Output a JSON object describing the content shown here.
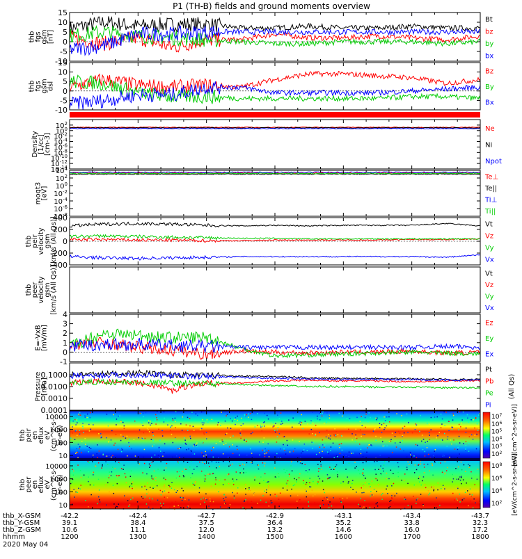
{
  "title": "P1 (TH-B) fields and ground moments overview",
  "footer": {
    "rows": [
      {
        "label": "thb_X-GSM",
        "values": [
          "-42.2",
          "-42.4",
          "-42.7",
          "-42.9",
          "-43.1",
          "-43.4",
          "-43.7"
        ]
      },
      {
        "label": "thb_Y-GSM",
        "values": [
          "39.1",
          "38.4",
          "37.5",
          "36.4",
          "35.2",
          "33.8",
          "32.3"
        ]
      },
      {
        "label": "thb_Z-GSM",
        "values": [
          "10.6",
          "11.1",
          "12.0",
          "13.2",
          "14.6",
          "16.0",
          "17.2"
        ]
      },
      {
        "label": "hhmm",
        "values": [
          "1200",
          "1300",
          "1400",
          "1500",
          "1600",
          "1700",
          "1800"
        ]
      }
    ],
    "date": "2020 May 04"
  },
  "colorbar_labels": {
    "top": "[eV/(cm^2-s-sr-eV)]",
    "bottom": "[eV/(cm^2-s-sr-eV)]"
  },
  "chart_data": [
    {
      "type": "line",
      "panel": "fgs_gsm",
      "ylabel": [
        "thb",
        "fgs",
        "gsm",
        "[nT]"
      ],
      "ylim": [
        -10,
        15
      ],
      "yticks": [
        "15",
        "10",
        "5",
        "0",
        "-5",
        "-10"
      ],
      "legend": [
        {
          "name": "Bt",
          "color": "#000000"
        },
        {
          "name": "bz",
          "color": "#ff0000"
        },
        {
          "name": "by",
          "color": "#00cc00"
        },
        {
          "name": "bx",
          "color": "#0000ff"
        }
      ],
      "x_hours": [
        12.0,
        12.5,
        13.0,
        13.5,
        14.0,
        14.5,
        15.0,
        15.5,
        16.0,
        16.5,
        17.0,
        17.5,
        18.0
      ],
      "series": [
        {
          "name": "Bt",
          "color": "#000000",
          "values": [
            7,
            10,
            8,
            9,
            9,
            7,
            7,
            8,
            7,
            7,
            8,
            7,
            7
          ]
        },
        {
          "name": "bz",
          "color": "#ff0000",
          "values": [
            2,
            -1,
            2,
            -3,
            1,
            1,
            4,
            2,
            2,
            3,
            2,
            1,
            3
          ]
        },
        {
          "name": "by",
          "color": "#00cc00",
          "values": [
            3,
            5,
            3,
            2,
            1,
            0,
            -1,
            -1,
            0,
            0,
            0,
            -1,
            0
          ]
        },
        {
          "name": "bx",
          "color": "#0000ff",
          "values": [
            -4,
            -2,
            4,
            4,
            5,
            5,
            5,
            5,
            5,
            5,
            5,
            5,
            5
          ]
        }
      ]
    },
    {
      "type": "line",
      "panel": "fgs_dsl",
      "ylabel": [
        "thb",
        "fgs",
        "gsm",
        "dsl"
      ],
      "ylim": [
        -10,
        15
      ],
      "yticks": [
        "15",
        "10",
        "5",
        "0",
        "-5",
        "-10"
      ],
      "legend": [
        {
          "name": "Bz",
          "color": "#ff0000"
        },
        {
          "name": "By",
          "color": "#00cc00"
        },
        {
          "name": "Bx",
          "color": "#0000ff"
        }
      ],
      "x_hours": [
        12.0,
        12.5,
        13.0,
        13.5,
        14.0,
        14.5,
        15.0,
        15.5,
        16.0,
        16.5,
        17.0,
        17.5,
        18.0
      ],
      "series": [
        {
          "name": "Bz",
          "color": "#ff0000",
          "values": [
            2,
            6,
            3,
            2,
            3,
            2,
            6,
            9,
            9,
            8,
            7,
            4,
            6
          ]
        },
        {
          "name": "By",
          "color": "#00cc00",
          "values": [
            5,
            4,
            -1,
            -3,
            -3,
            -4,
            -4,
            -4,
            -4,
            -4,
            -3,
            -3,
            -4
          ]
        },
        {
          "name": "Bx",
          "color": "#0000ff",
          "values": [
            -7,
            -5,
            -2,
            -2,
            2,
            2,
            -1,
            -1,
            -1,
            -1,
            0,
            1,
            2
          ]
        }
      ]
    },
    {
      "type": "line",
      "panel": "density",
      "log": true,
      "ylabel": [
        "Density",
        "[1/cc]",
        "[cm-3]"
      ],
      "ylim_log": [
        -14,
        4
      ],
      "yticks": [
        "10^2",
        "10^0",
        "10^-2",
        "10^-4",
        "10^-6",
        "10^-8",
        "10^-10",
        "10^-12",
        "10^-14"
      ],
      "legend": [
        {
          "name": "Ne",
          "color": "#ff0000"
        },
        {
          "name": "Ni",
          "color": "#000000"
        },
        {
          "name": "Npot",
          "color": "#0000ff"
        }
      ],
      "series": [
        {
          "name": "Ne",
          "color": "#ff0000",
          "log_level": 1.2
        },
        {
          "name": "Ni",
          "color": "#000000",
          "log_level": 1.0
        },
        {
          "name": "Npot",
          "color": "#0000ff",
          "log_level": 0.7
        }
      ]
    },
    {
      "type": "line",
      "panel": "temperature",
      "log": true,
      "ylabel": [
        "moqt3",
        "[eV]"
      ],
      "ylim_log": [
        -8,
        4
      ],
      "yticks": [
        "10^4",
        "10^2",
        "10^0",
        "10^-2",
        "10^-4",
        "10^-6",
        "10^-8"
      ],
      "legend": [
        {
          "name": "Te⊥",
          "color": "#ff0000"
        },
        {
          "name": "Te||",
          "color": "#000000"
        },
        {
          "name": "Ti⊥",
          "color": "#0000ff"
        },
        {
          "name": "Ti||",
          "color": "#00cc00"
        }
      ],
      "series": [
        {
          "name": "Te⊥",
          "color": "#ff0000",
          "log_level": 3.3
        },
        {
          "name": "Te||",
          "color": "#000000",
          "log_level": 3.0
        },
        {
          "name": "Ti⊥",
          "color": "#0000ff",
          "log_level": 3.5
        },
        {
          "name": "Ti||",
          "color": "#00cc00",
          "log_level": 3.2
        }
      ]
    },
    {
      "type": "line",
      "panel": "peir_velocity",
      "ylabel": [
        "thb",
        "peir",
        "velocity",
        "gsm",
        "[km/s (All Qs)]"
      ],
      "ylim": [
        -400,
        400
      ],
      "yticks": [
        "400",
        "200",
        "0",
        "-200",
        "-400"
      ],
      "legend": [
        {
          "name": "Vt",
          "color": "#000000"
        },
        {
          "name": "Vz",
          "color": "#ff0000"
        },
        {
          "name": "Vy",
          "color": "#00cc00"
        },
        {
          "name": "Vx",
          "color": "#0000ff"
        }
      ],
      "x_hours": [
        12.0,
        12.5,
        13.0,
        13.5,
        14.0,
        14.5,
        15.0,
        15.5,
        16.0,
        16.5,
        17.0,
        17.5,
        18.0
      ],
      "series": [
        {
          "name": "Vt",
          "color": "#000000",
          "values": [
            260,
            290,
            300,
            290,
            270,
            260,
            270,
            260,
            270,
            270,
            270,
            300,
            260
          ]
        },
        {
          "name": "Vz",
          "color": "#ff0000",
          "values": [
            30,
            30,
            20,
            20,
            10,
            10,
            20,
            20,
            20,
            20,
            30,
            30,
            40
          ]
        },
        {
          "name": "Vy",
          "color": "#00cc00",
          "values": [
            80,
            90,
            80,
            70,
            60,
            50,
            50,
            40,
            40,
            40,
            40,
            40,
            40
          ]
        },
        {
          "name": "Vx",
          "color": "#0000ff",
          "values": [
            -260,
            -280,
            -290,
            -280,
            -270,
            -260,
            -260,
            -260,
            -260,
            -260,
            -260,
            -270,
            -230
          ]
        }
      ]
    },
    {
      "type": "line",
      "panel": "peer_velocity",
      "ylabel": [
        "thb",
        "peer",
        "velocity",
        "gsm",
        "[km/s (All Qs)]"
      ],
      "legend": [
        {
          "name": "Vt",
          "color": "#000000"
        },
        {
          "name": "Vz",
          "color": "#ff0000"
        },
        {
          "name": "Vy",
          "color": "#00cc00"
        },
        {
          "name": "Vx",
          "color": "#0000ff"
        }
      ],
      "series": []
    },
    {
      "type": "line",
      "panel": "efield",
      "ylabel": [
        "E=-VxB",
        "[mV/m]"
      ],
      "ylim": [
        -1,
        4
      ],
      "yticks": [
        "4",
        "3",
        "2",
        "1",
        "0",
        "-1"
      ],
      "legend": [
        {
          "name": "Ez",
          "color": "#ff0000"
        },
        {
          "name": "Ey",
          "color": "#00cc00"
        },
        {
          "name": "Ex",
          "color": "#0000ff"
        }
      ],
      "x_hours": [
        12.0,
        12.5,
        13.0,
        13.5,
        14.0,
        14.5,
        15.0,
        15.5,
        16.0,
        16.5,
        17.0,
        17.5,
        18.0
      ],
      "series": [
        {
          "name": "Ez",
          "color": "#ff0000",
          "values": [
            0.8,
            1.0,
            0.5,
            0.2,
            -0.2,
            0.1,
            0.0,
            -0.1,
            0.0,
            0.0,
            0.1,
            -0.1,
            0.0
          ]
        },
        {
          "name": "Ey",
          "color": "#00cc00",
          "values": [
            0.6,
            2.0,
            1.8,
            1.5,
            1.6,
            0.4,
            -0.4,
            -0.3,
            -0.2,
            -0.1,
            0.0,
            -0.1,
            -0.2
          ]
        },
        {
          "name": "Ex",
          "color": "#0000ff",
          "values": [
            0.6,
            0.8,
            0.8,
            0.7,
            0.6,
            0.5,
            0.5,
            0.5,
            0.5,
            0.5,
            0.5,
            0.6,
            0.5
          ]
        }
      ]
    },
    {
      "type": "line",
      "panel": "pressure",
      "log": true,
      "ylabel": [
        "Pressure",
        "[nPa]"
      ],
      "ylim_log": [
        -4,
        0
      ],
      "yticks": [
        "0.1000",
        "0.0100",
        "0.0010",
        "0.0001"
      ],
      "legend": [
        {
          "name": "Pt",
          "color": "#000000"
        },
        {
          "name": "Pb",
          "color": "#ff0000"
        },
        {
          "name": "Pe",
          "color": "#00cc00"
        },
        {
          "name": "Pi",
          "color": "#0000ff"
        }
      ],
      "right_label": "(All Qs)",
      "x_hours": [
        12.0,
        12.5,
        13.0,
        13.5,
        14.0,
        14.5,
        15.0,
        15.5,
        16.0,
        16.5,
        17.0,
        17.5,
        18.0
      ],
      "series": [
        {
          "name": "Pt",
          "color": "#000000",
          "values": [
            0.1,
            0.12,
            0.14,
            0.1,
            0.09,
            0.08,
            0.07,
            0.055,
            0.05,
            0.05,
            0.045,
            0.04,
            0.04
          ]
        },
        {
          "name": "Pb",
          "color": "#ff0000",
          "values": [
            0.02,
            0.03,
            0.02,
            0.004,
            0.02,
            0.02,
            0.03,
            0.035,
            0.03,
            0.03,
            0.025,
            0.03,
            0.03
          ]
        },
        {
          "name": "Pe",
          "color": "#00cc00",
          "values": [
            0.02,
            0.025,
            0.022,
            0.02,
            0.018,
            0.015,
            0.012,
            0.01,
            0.01,
            0.009,
            0.009,
            0.008,
            0.008
          ]
        },
        {
          "name": "Pi",
          "color": "#0000ff",
          "values": [
            0.08,
            0.09,
            0.1,
            0.08,
            0.07,
            0.06,
            0.05,
            0.045,
            0.04,
            0.04,
            0.04,
            0.035,
            0.035
          ]
        }
      ]
    },
    {
      "type": "heatmap",
      "panel": "peir_spectrogram",
      "ylabel": [
        "thb",
        "peir",
        "en",
        "eflux",
        "eV",
        "(cm^2-s-",
        "sr-eV)"
      ],
      "yticks": [
        "10000",
        "1000",
        "100",
        "10"
      ],
      "colorbar_ticks": [
        "10^7",
        "10^6",
        "10^5",
        "10^4",
        "10^3",
        "10^2"
      ]
    },
    {
      "type": "heatmap",
      "panel": "peer_spectrogram",
      "ylabel": [
        "thb",
        "peer",
        "en",
        "eflux",
        "eV",
        "(cm^2-s-",
        "sr-eV)"
      ],
      "yticks": [
        "10000",
        "1000",
        "100",
        "10"
      ],
      "colorbar_ticks": [
        "10^8",
        "10^6",
        "10^4",
        "10^2"
      ]
    }
  ]
}
